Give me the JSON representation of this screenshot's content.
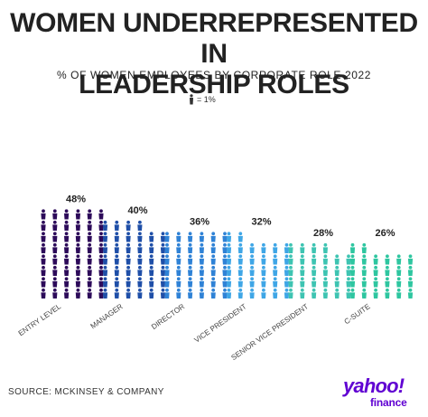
{
  "header": {
    "title_line1": "WOMEN UNDERREPRESENTED IN",
    "title_line2": "LEADERSHIP ROLES",
    "subtitle": "% OF WOMEN EMPLOYEES BY CORPORATE ROLE 2022"
  },
  "legend": {
    "icon": "person-icon",
    "text": "= 1%"
  },
  "chart_data": {
    "type": "bar",
    "title": "WOMEN UNDERREPRESENTED IN LEADERSHIP ROLES",
    "subtitle": "% OF WOMEN EMPLOYEES BY CORPORATE ROLE 2022",
    "unit": "%",
    "categories": [
      "ENTRY LEVEL",
      "MANAGER",
      "DIRECTOR",
      "VICE PRESIDENT",
      "SENIOR VICE PRESIDENT",
      "C-SUITE"
    ],
    "values": [
      48,
      40,
      36,
      32,
      28,
      26
    ],
    "value_labels": [
      "48%",
      "40%",
      "36%",
      "32%",
      "28%",
      "26%"
    ],
    "colors": [
      "#2d0b5a",
      "#1f4fa8",
      "#2f82d6",
      "#3fa6e6",
      "#3ec4b2",
      "#2ec6a0"
    ],
    "icon_value": "1%"
  },
  "footer": {
    "source": "SOURCE: MCKINSEY & COMPANY"
  },
  "brand": {
    "name": "yahoo!",
    "sub": "finance",
    "color": "#6001d2"
  }
}
